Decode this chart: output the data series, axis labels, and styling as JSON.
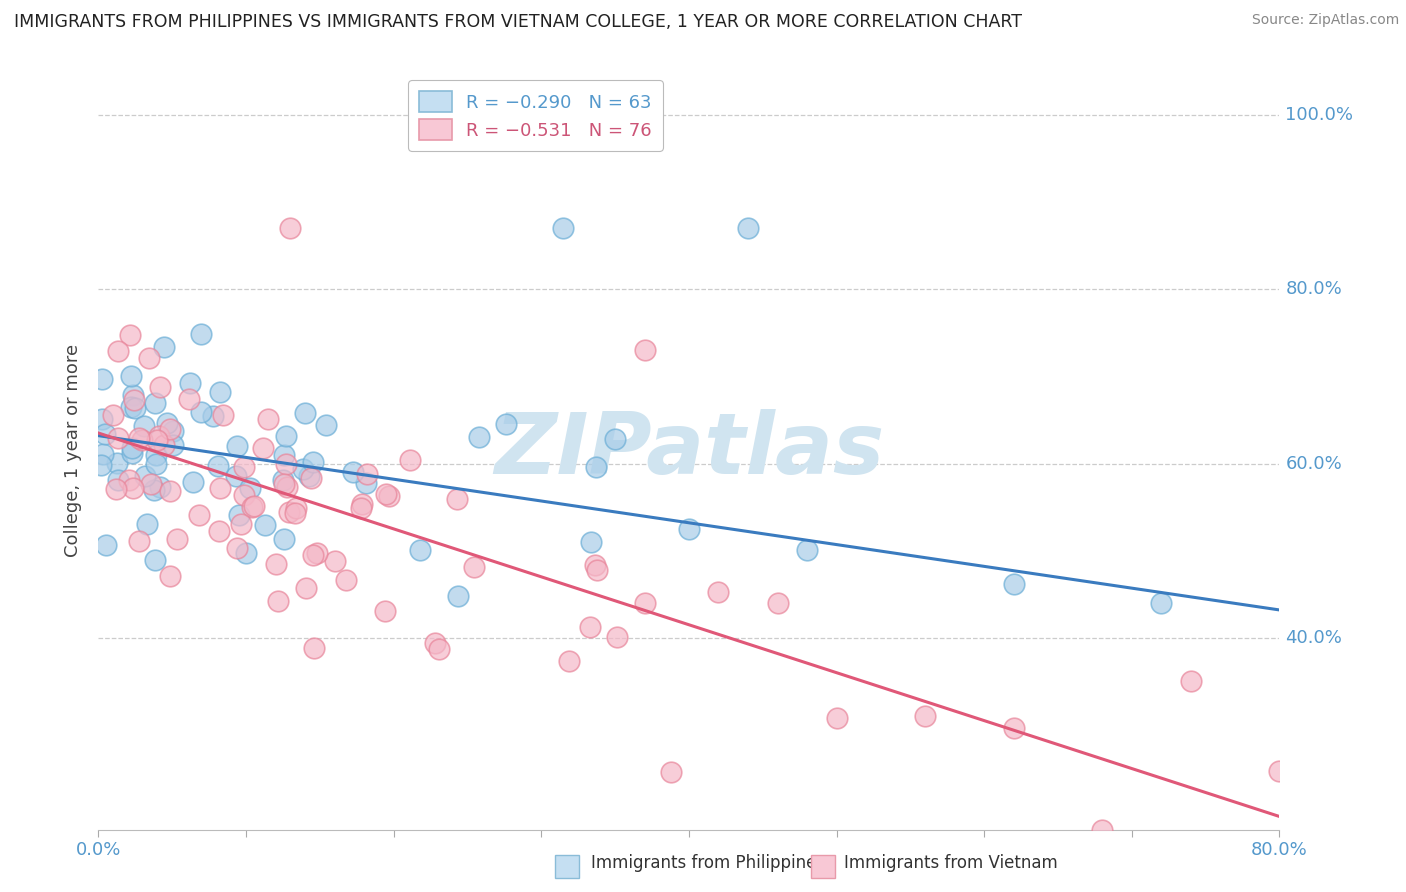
{
  "title": "IMMIGRANTS FROM PHILIPPINES VS IMMIGRANTS FROM VIETNAM COLLEGE, 1 YEAR OR MORE CORRELATION CHART",
  "source": "Source: ZipAtlas.com",
  "ylabel": "College, 1 year or more",
  "x_min": 0.0,
  "x_max": 0.8,
  "y_min": 0.18,
  "y_max": 1.05,
  "y_ticks": [
    0.4,
    0.6,
    0.8,
    1.0
  ],
  "y_tick_labels": [
    "40.0%",
    "60.0%",
    "80.0%",
    "100.0%"
  ],
  "philippines_color": "#a8cce8",
  "philippines_edge_color": "#6baed6",
  "vietnam_color": "#f4b8c8",
  "vietnam_edge_color": "#e8859a",
  "philippines_line_color": "#3a7bbf",
  "vietnam_line_color": "#e05878",
  "background_color": "#ffffff",
  "grid_color": "#cccccc",
  "tick_color": "#5599cc",
  "watermark_color": "#d0e4f0",
  "ph_line_start_y": 0.632,
  "ph_line_end_y": 0.432,
  "vn_line_start_y": 0.635,
  "vn_line_end_y": 0.195
}
